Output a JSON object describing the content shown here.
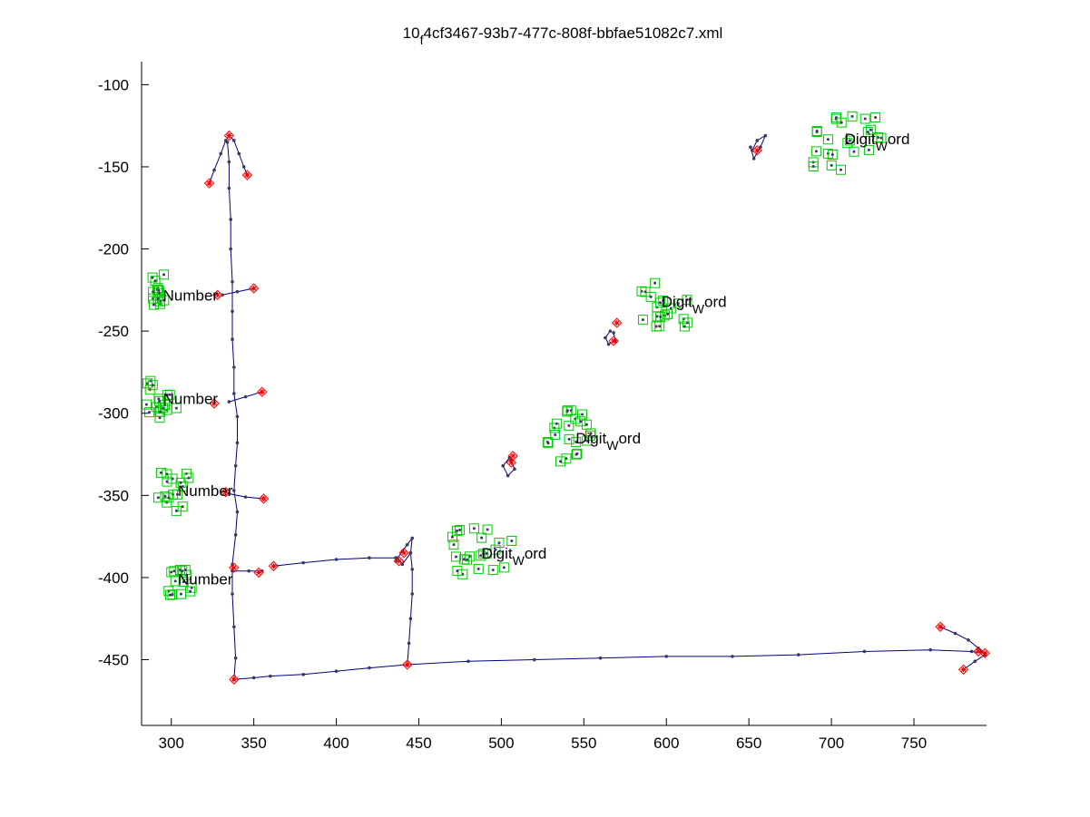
{
  "chart_data": {
    "type": "scatter",
    "title_main": "10",
    "title_sub": "f",
    "title_rest": "4cf3467-93b7-477c-808f-bbfae51082c7.xml",
    "xlim": [
      282,
      794
    ],
    "ylim": [
      -490,
      -86
    ],
    "xticks": [
      300,
      350,
      400,
      450,
      500,
      550,
      600,
      650,
      700,
      750
    ],
    "yticks": [
      -100,
      -150,
      -200,
      -250,
      -300,
      -350,
      -400,
      -450
    ],
    "grid": false,
    "colors": {
      "stroke_line": "#000080",
      "stroke_marker": "#3a3a5a",
      "endpoint": "#ff0000",
      "box": "#00cc00",
      "axis": "#000000"
    },
    "strokes": [
      [
        [
          338,
          -462
        ],
        [
          339,
          -449
        ],
        [
          338,
          -430
        ],
        [
          337,
          -410
        ],
        [
          337,
          -392
        ],
        [
          339,
          -374
        ],
        [
          340,
          -360
        ],
        [
          338,
          -347
        ],
        [
          339,
          -332
        ],
        [
          340,
          -318
        ],
        [
          340,
          -302
        ],
        [
          338,
          -288
        ],
        [
          338,
          -272
        ],
        [
          337,
          -255
        ],
        [
          337,
          -238
        ],
        [
          337,
          -220
        ],
        [
          336,
          -200
        ],
        [
          336,
          -182
        ],
        [
          335,
          -163
        ],
        [
          335,
          -147
        ],
        [
          334,
          -135
        ]
      ],
      [
        [
          323,
          -160
        ],
        [
          326,
          -152
        ],
        [
          330,
          -142
        ],
        [
          333,
          -134
        ],
        [
          335,
          -131
        ],
        [
          338,
          -134
        ],
        [
          341,
          -142
        ],
        [
          344,
          -150
        ],
        [
          346,
          -155
        ]
      ],
      [
        [
          331,
          -228
        ],
        [
          340,
          -226
        ],
        [
          350,
          -224
        ]
      ],
      [
        [
          335,
          -293
        ],
        [
          345,
          -290
        ],
        [
          355,
          -287
        ]
      ],
      [
        [
          335,
          -349
        ],
        [
          345,
          -351
        ],
        [
          356,
          -352
        ]
      ],
      [
        [
          337,
          -396
        ],
        [
          347,
          -396
        ],
        [
          355,
          -396
        ]
      ],
      [
        [
          338,
          -462
        ],
        [
          350,
          -461
        ],
        [
          360,
          -460
        ],
        [
          380,
          -459
        ],
        [
          400,
          -457
        ],
        [
          420,
          -455
        ],
        [
          443,
          -453
        ],
        [
          480,
          -451
        ],
        [
          520,
          -450
        ],
        [
          560,
          -449
        ],
        [
          600,
          -448
        ],
        [
          640,
          -448
        ],
        [
          680,
          -447
        ],
        [
          720,
          -445
        ],
        [
          760,
          -444
        ],
        [
          785,
          -445
        ],
        [
          793,
          -446
        ]
      ],
      [
        [
          443,
          -453
        ],
        [
          444,
          -440
        ],
        [
          445,
          -425
        ],
        [
          446,
          -410
        ],
        [
          446,
          -395
        ],
        [
          445,
          -385
        ]
      ],
      [
        [
          362,
          -393
        ],
        [
          380,
          -391
        ],
        [
          400,
          -389
        ],
        [
          420,
          -388
        ],
        [
          436,
          -388
        ]
      ],
      [
        [
          436,
          -390
        ],
        [
          440,
          -384
        ],
        [
          443,
          -380
        ],
        [
          446,
          -376
        ],
        [
          445,
          -385
        ],
        [
          440,
          -392
        ],
        [
          437,
          -388
        ]
      ],
      [
        [
          766,
          -430
        ],
        [
          775,
          -434
        ],
        [
          783,
          -438
        ],
        [
          789,
          -443
        ],
        [
          793,
          -447
        ],
        [
          787,
          -451
        ],
        [
          780,
          -456
        ]
      ],
      [
        [
          652,
          -140
        ],
        [
          655,
          -134
        ],
        [
          660,
          -131
        ],
        [
          657,
          -138
        ],
        [
          653,
          -145
        ],
        [
          651,
          -138
        ]
      ],
      [
        [
          566,
          -250
        ],
        [
          563,
          -254
        ],
        [
          565,
          -258
        ],
        [
          569,
          -256
        ],
        [
          568,
          -251
        ]
      ],
      [
        [
          505,
          -327
        ],
        [
          501,
          -332
        ],
        [
          504,
          -338
        ],
        [
          508,
          -334
        ],
        [
          506,
          -329
        ]
      ]
    ],
    "endpoints": [
      [
        335,
        -131
      ],
      [
        323,
        -160
      ],
      [
        346,
        -155
      ],
      [
        350,
        -224
      ],
      [
        328,
        -228
      ],
      [
        355,
        -287
      ],
      [
        326,
        -294
      ],
      [
        356,
        -352
      ],
      [
        333,
        -348
      ],
      [
        338,
        -394
      ],
      [
        353,
        -397
      ],
      [
        362,
        -393
      ],
      [
        443,
        -453
      ],
      [
        438,
        -390
      ],
      [
        766,
        -430
      ],
      [
        780,
        -456
      ],
      [
        789,
        -445
      ],
      [
        793,
        -446
      ],
      [
        338,
        -462
      ],
      [
        655,
        -140
      ],
      [
        568,
        -256
      ],
      [
        506,
        -330
      ],
      [
        570,
        -245
      ],
      [
        507,
        -326
      ],
      [
        441,
        -385
      ]
    ],
    "box_groups": [
      {
        "x": [
          288,
          296
        ],
        "y": [
          -235,
          -215
        ],
        "n": 14
      },
      {
        "x": [
          284,
          304
        ],
        "y": [
          -305,
          -280
        ],
        "n": 18
      },
      {
        "x": [
          292,
          312
        ],
        "y": [
          -360,
          -336
        ],
        "n": 16
      },
      {
        "x": [
          298,
          314
        ],
        "y": [
          -411,
          -393
        ],
        "n": 14
      },
      {
        "x": [
          470,
          510
        ],
        "y": [
          -398,
          -368
        ],
        "n": 22
      },
      {
        "x": [
          527,
          555
        ],
        "y": [
          -330,
          -298
        ],
        "n": 22
      },
      {
        "x": [
          583,
          616
        ],
        "y": [
          -248,
          -218
        ],
        "n": 20
      },
      {
        "x": [
          685,
          732
        ],
        "y": [
          -155,
          -118
        ],
        "n": 24
      }
    ],
    "labels": [
      {
        "x": 295,
        "y": -228,
        "main": "Number"
      },
      {
        "x": 295,
        "y": -291,
        "main": "Number"
      },
      {
        "x": 304,
        "y": -347,
        "main": "Number"
      },
      {
        "x": 304,
        "y": -401,
        "main": "Number"
      },
      {
        "x": 488,
        "y": -385,
        "main": "Digit",
        "sub": "W",
        "rest": "ord"
      },
      {
        "x": 545,
        "y": -315,
        "main": "Digit",
        "sub": "W",
        "rest": "ord"
      },
      {
        "x": 597,
        "y": -232,
        "main": "Digit",
        "sub": "W",
        "rest": "ord"
      },
      {
        "x": 708,
        "y": -133,
        "main": "Digit",
        "sub": "W",
        "rest": "ord"
      }
    ]
  }
}
